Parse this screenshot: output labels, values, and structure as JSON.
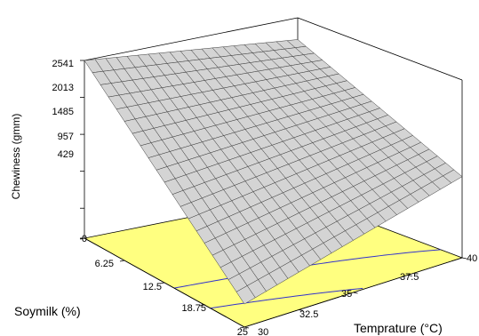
{
  "chart_data": {
    "type": "surface3d",
    "title": "",
    "zlabel": "Chewiness (gmm)",
    "xlabel": "Soymilk (%)",
    "ylabel": "Temprature (°C)",
    "x_ticks": [
      "0",
      "6.25",
      "12.5",
      "18.75",
      "25"
    ],
    "y_ticks": [
      "30",
      "32.5",
      "35",
      "37.5",
      "40"
    ],
    "z_ticks": [
      "0",
      "429",
      "957",
      "1485",
      "2013",
      "2541"
    ],
    "xlim": [
      0,
      25
    ],
    "ylim": [
      30,
      40
    ],
    "zlim": [
      0,
      2541
    ],
    "grid_size": 20,
    "surface_corners": {
      "soymilk_0_temp_30": 2541,
      "soymilk_0_temp_40": 2230,
      "soymilk_25_temp_30": 330,
      "soymilk_25_temp_40": 1160
    },
    "surface_color": "#d4d4d4",
    "floor_color": "#ffff80",
    "contour_color": "#3333cc"
  }
}
